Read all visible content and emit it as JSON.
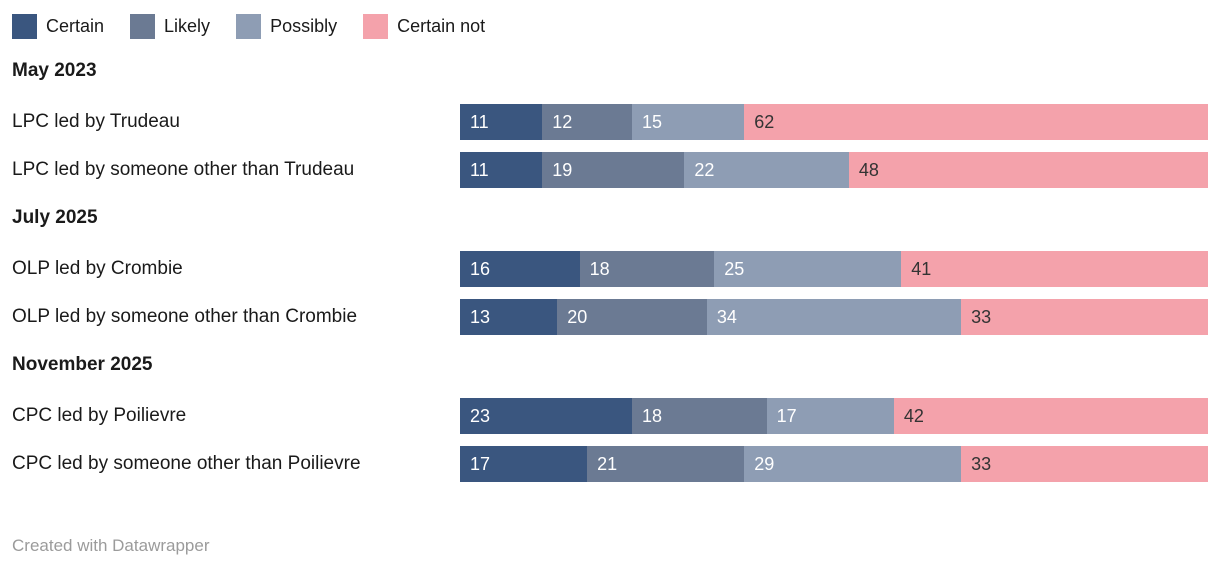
{
  "legend": {
    "items": [
      {
        "id": "certain",
        "label": "Certain",
        "color": "#3a567f"
      },
      {
        "id": "likely",
        "label": "Likely",
        "color": "#6b7a93"
      },
      {
        "id": "possibly",
        "label": "Possibly",
        "color": "#8e9db4"
      },
      {
        "id": "certain-not",
        "label": "Certain not",
        "color": "#f4a2ab"
      }
    ]
  },
  "chart_data": {
    "type": "bar",
    "stacked": true,
    "orientation": "horizontal",
    "xlim": [
      0,
      100
    ],
    "series_names": [
      "Certain",
      "Likely",
      "Possibly",
      "Certain not"
    ],
    "series_colors": [
      "#3a567f",
      "#6b7a93",
      "#8e9db4",
      "#f4a2ab"
    ],
    "value_label_colors": [
      "#ffffff",
      "#ffffff",
      "#ffffff",
      "#333333"
    ],
    "groups": [
      {
        "label": "May 2023",
        "rows": [
          {
            "label": "LPC led by Trudeau",
            "values": [
              11,
              12,
              15,
              62
            ]
          },
          {
            "label": "LPC led by someone other than Trudeau",
            "values": [
              11,
              19,
              22,
              48
            ]
          }
        ]
      },
      {
        "label": "July 2025",
        "rows": [
          {
            "label": "OLP led by Crombie",
            "values": [
              16,
              18,
              25,
              41
            ]
          },
          {
            "label": "OLP led by someone other than Crombie",
            "values": [
              13,
              20,
              34,
              33
            ]
          }
        ]
      },
      {
        "label": "November 2025",
        "rows": [
          {
            "label": "CPC led by Poilievre",
            "values": [
              23,
              18,
              17,
              42
            ]
          },
          {
            "label": "CPC led by someone other than Poilievre",
            "values": [
              17,
              21,
              29,
              33
            ]
          }
        ]
      }
    ]
  },
  "footer": {
    "attribution": "Created with Datawrapper"
  }
}
